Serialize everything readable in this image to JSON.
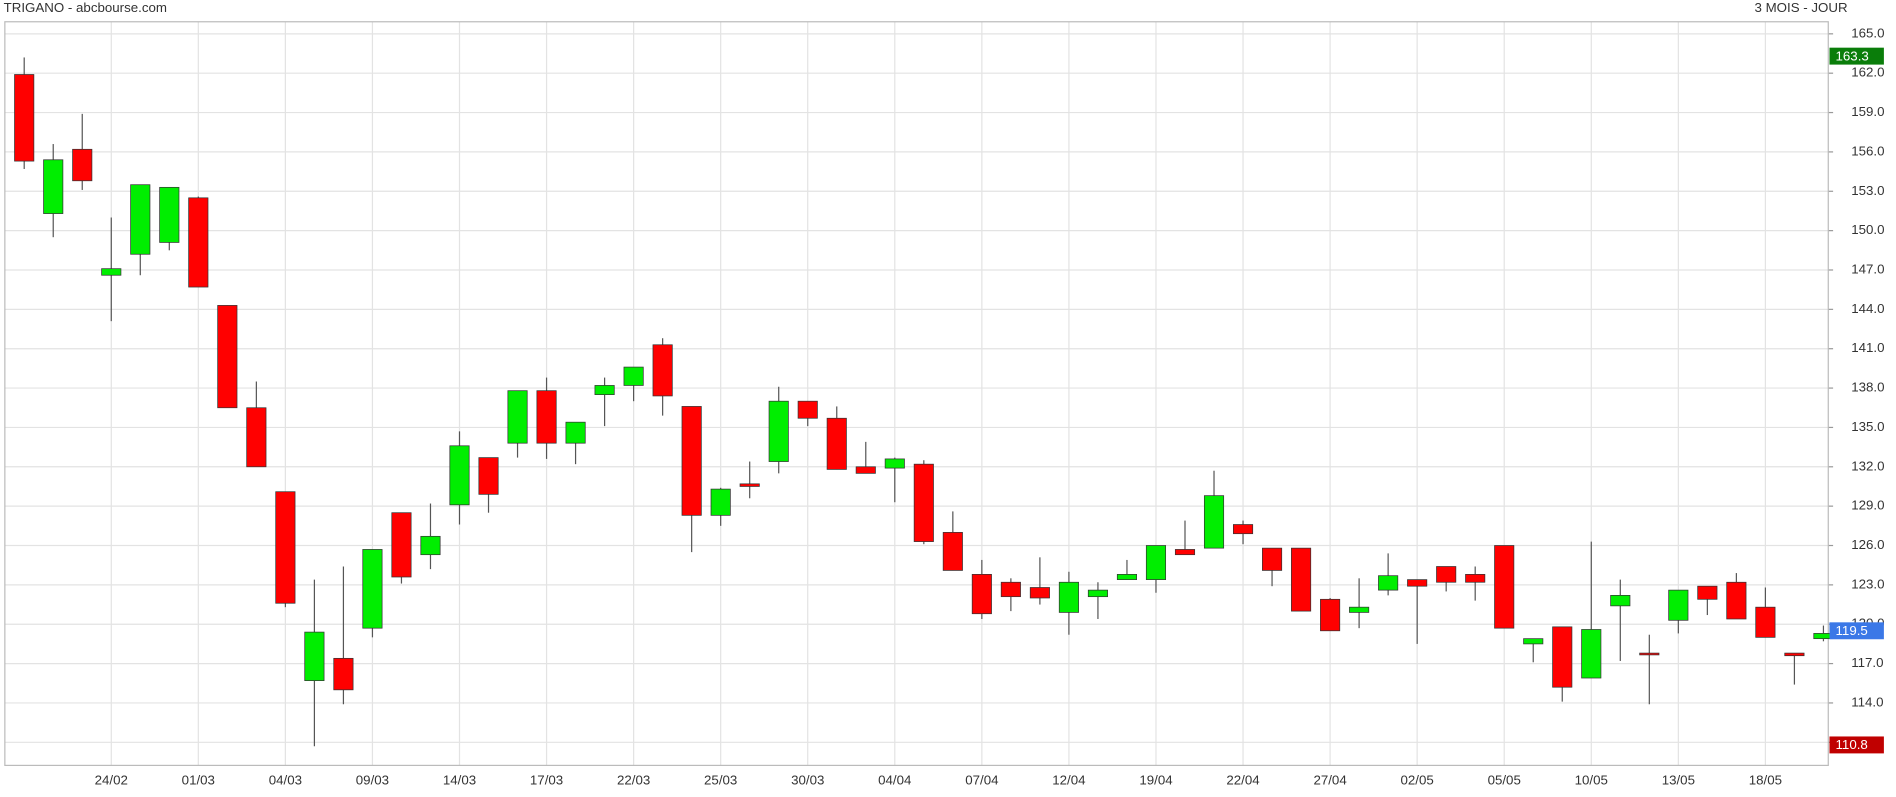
{
  "chart_data": {
    "type": "candlestick",
    "title": "TRIGANO - abcbourse.com",
    "subtitle": "3 MOIS - JOUR",
    "categories": [
      null,
      null,
      null,
      "24/02",
      null,
      null,
      "01/03",
      null,
      null,
      "04/03",
      null,
      null,
      "09/03",
      null,
      null,
      "14/03",
      null,
      null,
      "17/03",
      null,
      null,
      "22/03",
      null,
      null,
      "25/03",
      null,
      null,
      "30/03",
      null,
      null,
      "04/04",
      null,
      null,
      "07/04",
      null,
      null,
      "12/04",
      null,
      null,
      "19/04",
      null,
      null,
      "22/04",
      null,
      null,
      "27/04",
      null,
      null,
      "02/05",
      null,
      null,
      "05/05",
      null,
      null,
      "10/05",
      null,
      null,
      "13/05",
      null,
      null,
      "18/05",
      null,
      null
    ],
    "open": [
      161.9,
      151.3,
      156.2,
      146.6,
      148.2,
      149.1,
      152.5,
      144.3,
      136.5,
      130.1,
      115.7,
      117.4,
      119.7,
      128.5,
      125.3,
      129.1,
      132.7,
      133.8,
      137.8,
      133.8,
      137.5,
      138.2,
      141.3,
      136.6,
      128.3,
      130.7,
      132.4,
      137.0,
      135.7,
      132.0,
      131.9,
      132.2,
      127.0,
      123.8,
      123.2,
      122.8,
      120.9,
      122.1,
      123.4,
      123.4,
      125.7,
      125.8,
      127.6,
      125.8,
      125.8,
      121.9,
      120.9,
      122.6,
      123.4,
      124.4,
      123.8,
      126.0,
      118.5,
      119.8,
      115.9,
      121.4,
      117.8,
      120.3,
      122.9,
      123.2,
      121.3,
      117.8,
      118.9
    ],
    "high": [
      163.2,
      156.6,
      158.9,
      151.0,
      153.5,
      153.3,
      152.6,
      144.3,
      138.5,
      130.1,
      123.4,
      124.4,
      125.7,
      128.5,
      129.2,
      134.7,
      132.7,
      137.8,
      138.8,
      135.4,
      138.8,
      139.6,
      141.8,
      136.6,
      130.4,
      132.4,
      138.1,
      137.0,
      136.6,
      133.9,
      132.7,
      132.5,
      128.6,
      124.9,
      123.5,
      125.1,
      124.0,
      123.2,
      124.9,
      126.0,
      127.9,
      131.7,
      127.9,
      125.8,
      125.8,
      122.0,
      123.5,
      125.4,
      123.4,
      124.4,
      124.4,
      126.0,
      118.9,
      119.8,
      126.3,
      123.4,
      119.2,
      122.6,
      122.9,
      123.9,
      122.8,
      117.8,
      119.9
    ],
    "low": [
      154.7,
      149.5,
      153.1,
      143.1,
      146.6,
      148.5,
      145.7,
      136.5,
      132.0,
      121.3,
      110.7,
      113.9,
      119.0,
      123.1,
      124.2,
      127.6,
      128.5,
      132.7,
      132.6,
      132.2,
      135.1,
      137.0,
      135.9,
      125.5,
      127.5,
      129.6,
      131.5,
      135.1,
      131.8,
      131.5,
      129.3,
      126.1,
      124.1,
      120.4,
      121.0,
      121.5,
      119.2,
      120.4,
      123.4,
      122.4,
      125.3,
      125.8,
      126.1,
      122.9,
      121.0,
      119.5,
      119.7,
      122.2,
      118.5,
      122.5,
      121.8,
      119.7,
      117.1,
      114.1,
      115.9,
      117.2,
      113.9,
      119.3,
      120.7,
      120.4,
      119.0,
      115.4,
      118.7
    ],
    "close": [
      155.3,
      155.4,
      153.8,
      147.1,
      153.5,
      153.3,
      145.7,
      136.5,
      132.0,
      121.6,
      119.4,
      115.0,
      125.7,
      123.6,
      126.7,
      133.6,
      129.9,
      137.8,
      133.8,
      135.4,
      138.2,
      139.6,
      137.4,
      128.3,
      130.3,
      130.5,
      137.0,
      135.7,
      131.8,
      131.5,
      132.6,
      126.3,
      124.1,
      120.8,
      122.1,
      122.0,
      123.2,
      122.6,
      123.8,
      126.0,
      125.3,
      129.8,
      126.9,
      124.1,
      121.0,
      119.5,
      121.3,
      123.7,
      122.9,
      123.2,
      123.2,
      119.7,
      118.9,
      115.2,
      119.6,
      122.2,
      117.7,
      122.6,
      121.9,
      120.4,
      119.0,
      117.6,
      119.3
    ],
    "up_color": "#00ee00",
    "down_color": "#ff0000",
    "ylim": [
      109.24,
      165.92
    ],
    "yticks": [
      {
        "value": 111,
        "label": "111.0"
      },
      {
        "value": 114,
        "label": "114.0"
      },
      {
        "value": 117,
        "label": "117.0"
      },
      {
        "value": 120,
        "label": "120.0"
      },
      {
        "value": 123,
        "label": "123.0"
      },
      {
        "value": 126,
        "label": "126.0"
      },
      {
        "value": 129,
        "label": "129.0"
      },
      {
        "value": 132,
        "label": "132.0"
      },
      {
        "value": 135,
        "label": "135.0"
      },
      {
        "value": 138,
        "label": "138.0"
      },
      {
        "value": 141,
        "label": "141.0"
      },
      {
        "value": 144,
        "label": "144.0"
      },
      {
        "value": 147,
        "label": "147.0"
      },
      {
        "value": 150,
        "label": "150.0"
      },
      {
        "value": 153,
        "label": "153.0"
      },
      {
        "value": 156,
        "label": "156.0"
      },
      {
        "value": 159,
        "label": "159.0"
      },
      {
        "value": 162,
        "label": "162.0"
      },
      {
        "value": 165,
        "label": "165.0"
      }
    ],
    "grid": true,
    "markers": [
      {
        "value": 163.3,
        "color": "#0a7d0a"
      },
      {
        "value": 119.5,
        "color": "#3b78e7"
      },
      {
        "value": 110.8,
        "color": "#c00000"
      }
    ]
  }
}
